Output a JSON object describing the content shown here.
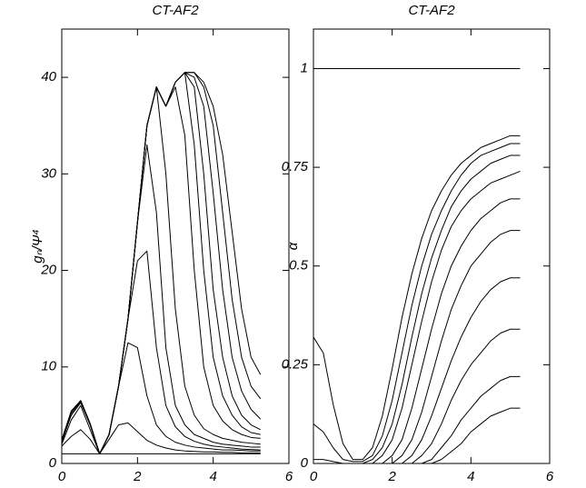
{
  "chart_data": [
    {
      "type": "line",
      "title": "CT-AF2",
      "ylabel": "gₙ/Ψ⁴",
      "x": [
        0,
        0.25,
        0.5,
        0.75,
        1,
        1.25,
        1.5,
        1.75,
        2,
        2.25,
        2.5,
        2.75,
        3,
        3.25,
        3.5,
        3.75,
        4,
        4.25,
        4.5,
        4.75,
        5,
        5.25
      ],
      "xlim": [
        0,
        6
      ],
      "xticks": [
        0,
        2,
        4,
        6
      ],
      "ylim": [
        0,
        45
      ],
      "yticks": [
        0,
        10,
        20,
        30,
        40
      ],
      "series": [
        {
          "color": "#000000",
          "values": [
            1,
            1,
            1,
            1,
            1,
            1,
            1,
            1,
            1,
            1,
            1,
            1,
            1,
            1,
            1,
            1,
            1,
            1,
            1,
            1,
            1,
            1
          ]
        },
        {
          "color": "#000000",
          "values": [
            1.8,
            2.8,
            3.5,
            2.5,
            1,
            2.5,
            4,
            4.2,
            3.3,
            2.4,
            1.9,
            1.6,
            1.4,
            1.3,
            1.25,
            1.2,
            1.2,
            1.15,
            1.15,
            1.1,
            1.1,
            1.1
          ]
        },
        {
          "color": "#000000",
          "values": [
            2,
            4.5,
            6,
            3.5,
            1,
            3,
            8,
            12.5,
            12,
            7,
            4,
            2.8,
            2.2,
            1.9,
            1.7,
            1.6,
            1.5,
            1.4,
            1.4,
            1.35,
            1.3,
            1.3
          ]
        },
        {
          "color": "#000000",
          "values": [
            2.2,
            5,
            6.3,
            4,
            1,
            3,
            8,
            15,
            21,
            22,
            12,
            6,
            3.8,
            2.8,
            2.3,
            2,
            1.8,
            1.7,
            1.6,
            1.5,
            1.45,
            1.4
          ]
        },
        {
          "color": "#000000",
          "values": [
            2.3,
            5.2,
            6.4,
            4,
            1,
            3,
            8,
            15,
            25,
            33,
            26,
            12,
            6,
            4,
            3,
            2.6,
            2.2,
            2,
            1.9,
            1.8,
            1.7,
            1.7
          ]
        },
        {
          "color": "#000000",
          "values": [
            2.4,
            5.4,
            6.5,
            4.1,
            1,
            3,
            8,
            15,
            25,
            35,
            39,
            30,
            16,
            8,
            5,
            3.6,
            3,
            2.6,
            2.4,
            2.2,
            2.1,
            2
          ]
        },
        {
          "color": "#000000",
          "values": [
            2.4,
            5.4,
            6.5,
            4.1,
            1,
            3,
            8,
            15,
            25,
            35,
            39,
            37,
            39,
            34,
            20,
            10,
            6,
            4.4,
            3.5,
            3,
            2.7,
            2.6
          ]
        },
        {
          "color": "#000000",
          "values": [
            2.4,
            5.4,
            6.5,
            4.1,
            1,
            3,
            8,
            15,
            25,
            35,
            39,
            37,
            39.5,
            40.5,
            33,
            20,
            11,
            7,
            5,
            3.8,
            3.2,
            3.0
          ]
        },
        {
          "color": "#000000",
          "values": [
            2.4,
            5.4,
            6.5,
            4.1,
            1,
            3,
            8,
            15,
            25,
            35,
            39,
            37,
            39.5,
            40.5,
            39,
            30,
            18,
            11,
            7,
            5,
            4,
            3.5
          ]
        },
        {
          "color": "#000000",
          "values": [
            2.4,
            5.4,
            6.5,
            4.1,
            1,
            3,
            8,
            15,
            25,
            35,
            39,
            37,
            39.5,
            40.5,
            40,
            37,
            28,
            18,
            11,
            7.5,
            5.6,
            4.6
          ]
        },
        {
          "color": "#000000",
          "values": [
            2.4,
            5.4,
            6.5,
            4.1,
            1,
            3,
            8,
            15,
            25,
            35,
            39,
            37,
            39.5,
            40.5,
            40.5,
            39,
            35,
            26,
            17,
            11,
            8,
            6.7
          ]
        },
        {
          "color": "#000000",
          "values": [
            2.4,
            5.4,
            6.5,
            4.1,
            1,
            3,
            8,
            15,
            25,
            35,
            39,
            37,
            39.5,
            40.5,
            40.5,
            39.5,
            37,
            32,
            24,
            16,
            11,
            9.2
          ]
        }
      ]
    },
    {
      "type": "line",
      "title": "CT-AF2",
      "ylabel": "α",
      "x": [
        0,
        0.25,
        0.5,
        0.75,
        1,
        1.25,
        1.5,
        1.75,
        2,
        2.25,
        2.5,
        2.75,
        3,
        3.25,
        3.5,
        3.75,
        4,
        4.25,
        4.5,
        4.75,
        5,
        5.25
      ],
      "xlim": [
        0,
        6
      ],
      "xticks": [
        0,
        2,
        4,
        6
      ],
      "ylim": [
        0,
        1.1
      ],
      "yticks": [
        0,
        0.25,
        0.5,
        0.75,
        1
      ],
      "series": [
        {
          "color": "#000000",
          "values": [
            1,
            1,
            1,
            1,
            1,
            1,
            1,
            1,
            1,
            1,
            1,
            1,
            1,
            1,
            1,
            1,
            1,
            1,
            1,
            1,
            1,
            1
          ]
        },
        {
          "color": "#000000",
          "values": [
            0.32,
            0.28,
            0.15,
            0.05,
            0.01,
            0.01,
            0.04,
            0.12,
            0.24,
            0.37,
            0.48,
            0.57,
            0.64,
            0.69,
            0.73,
            0.76,
            0.78,
            0.8,
            0.81,
            0.82,
            0.83,
            0.83
          ]
        },
        {
          "color": "#000000",
          "values": [
            0.1,
            0.08,
            0.04,
            0.01,
            0.005,
            0.005,
            0.02,
            0.07,
            0.16,
            0.28,
            0.4,
            0.5,
            0.58,
            0.64,
            0.69,
            0.73,
            0.76,
            0.78,
            0.79,
            0.8,
            0.81,
            0.81
          ]
        },
        {
          "color": "#000000",
          "values": [
            0.01,
            0.01,
            0.005,
            0,
            0,
            0,
            0.01,
            0.04,
            0.1,
            0.2,
            0.32,
            0.43,
            0.52,
            0.59,
            0.65,
            0.69,
            0.72,
            0.74,
            0.76,
            0.77,
            0.78,
            0.78
          ]
        },
        {
          "color": "#000000",
          "values": [
            0,
            0,
            0,
            0,
            0,
            0,
            0,
            0.02,
            0.06,
            0.14,
            0.25,
            0.36,
            0.46,
            0.54,
            0.6,
            0.64,
            0.67,
            0.69,
            0.71,
            0.72,
            0.73,
            0.74
          ]
        },
        {
          "color": "#000000",
          "values": [
            0,
            0,
            0,
            0,
            0,
            0,
            0,
            0,
            0.02,
            0.06,
            0.14,
            0.24,
            0.34,
            0.43,
            0.5,
            0.55,
            0.59,
            0.62,
            0.64,
            0.66,
            0.67,
            0.67
          ]
        },
        {
          "color": "#000000",
          "values": [
            0,
            0,
            0,
            0,
            0,
            0,
            0,
            0,
            0,
            0.02,
            0.06,
            0.13,
            0.22,
            0.31,
            0.39,
            0.45,
            0.5,
            0.53,
            0.56,
            0.58,
            0.59,
            0.59
          ]
        },
        {
          "color": "#000000",
          "values": [
            0,
            0,
            0,
            0,
            0,
            0,
            0,
            0,
            0,
            0,
            0.02,
            0.06,
            0.12,
            0.19,
            0.26,
            0.32,
            0.37,
            0.41,
            0.44,
            0.46,
            0.47,
            0.47
          ]
        },
        {
          "color": "#000000",
          "values": [
            0,
            0,
            0,
            0,
            0,
            0,
            0,
            0,
            0,
            0,
            0,
            0.02,
            0.05,
            0.1,
            0.16,
            0.21,
            0.25,
            0.28,
            0.31,
            0.33,
            0.34,
            0.34
          ]
        },
        {
          "color": "#000000",
          "values": [
            0,
            0,
            0,
            0,
            0,
            0,
            0,
            0,
            0,
            0,
            0,
            0,
            0.01,
            0.04,
            0.07,
            0.11,
            0.14,
            0.17,
            0.19,
            0.21,
            0.22,
            0.22
          ]
        },
        {
          "color": "#000000",
          "values": [
            0,
            0,
            0,
            0,
            0,
            0,
            0,
            0,
            0,
            0,
            0,
            0,
            0,
            0.01,
            0.03,
            0.05,
            0.08,
            0.1,
            0.12,
            0.13,
            0.14,
            0.14
          ]
        }
      ]
    }
  ]
}
